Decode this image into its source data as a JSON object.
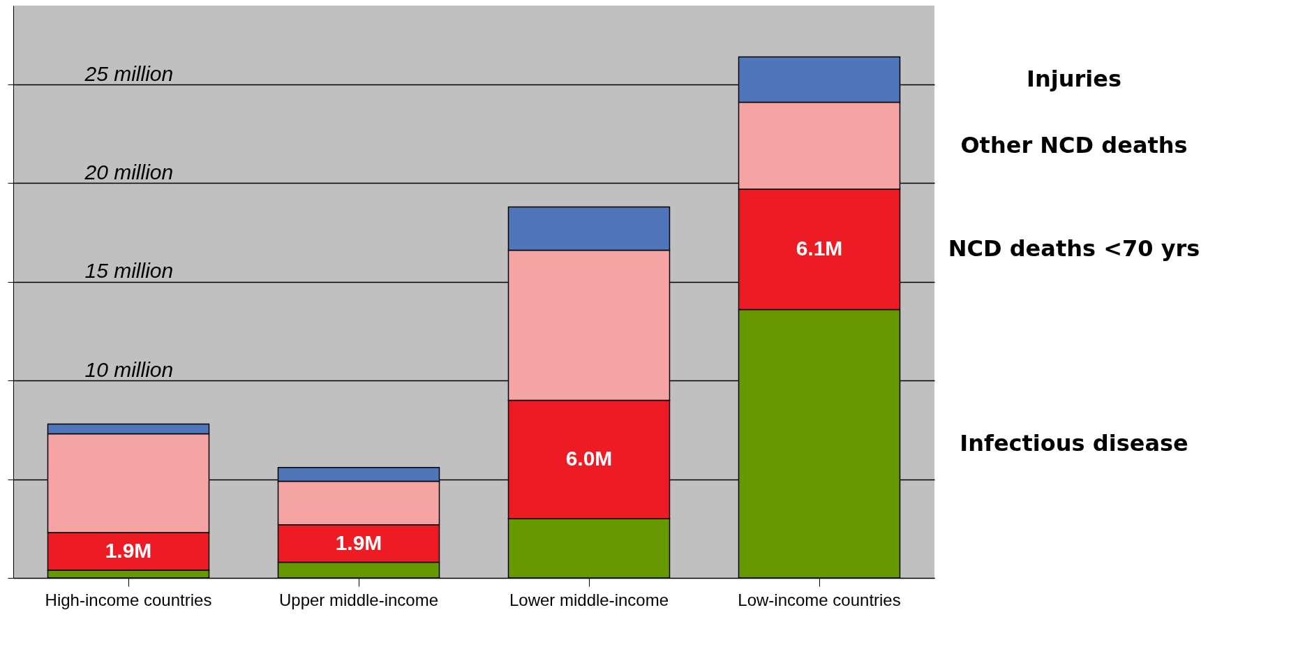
{
  "chart_data": {
    "type": "bar",
    "stacked": true,
    "categories": [
      "High-income countries",
      "Upper middle-income",
      "Lower middle-income",
      "Low-income countries"
    ],
    "series": [
      {
        "name": "Infectious disease",
        "color": "#669900",
        "values": [
          0.4,
          0.8,
          3.0,
          13.6
        ]
      },
      {
        "name": "NCD deaths <70 yrs",
        "color": "#ed1c24",
        "values": [
          1.9,
          1.9,
          6.0,
          6.1
        ],
        "value_labels": [
          "1.9M",
          "1.9M",
          "6.0M",
          "6.1M"
        ]
      },
      {
        "name": "Other NCD deaths",
        "color": "#f5a3a3",
        "values": [
          5.0,
          2.2,
          7.6,
          4.4
        ]
      },
      {
        "name": "Injuries",
        "color": "#4f76bb",
        "values": [
          0.5,
          0.7,
          2.2,
          2.3
        ]
      }
    ],
    "ylim": [
      0,
      29
    ],
    "yticks": [
      {
        "value": 0,
        "label": null
      },
      {
        "value": 5,
        "label": null
      },
      {
        "value": 10,
        "label": "10 million"
      },
      {
        "value": 15,
        "label": "15 million"
      },
      {
        "value": 20,
        "label": "20 million"
      },
      {
        "value": 25,
        "label": "25 million"
      }
    ],
    "grid": "y",
    "legend": "right"
  }
}
